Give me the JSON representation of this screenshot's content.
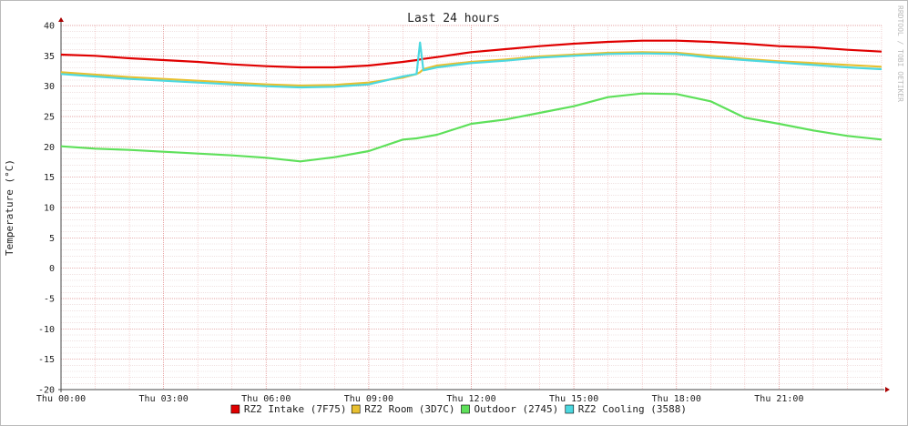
{
  "chart_data": {
    "type": "line",
    "title": "Last 24 hours",
    "ylabel": "Temperature (°C)",
    "watermark": "RRDTOOL / TOBI OETIKER",
    "x": [
      0,
      1,
      2,
      3,
      4,
      5,
      6,
      7,
      8,
      9,
      10,
      10.4,
      10.5,
      10.6,
      11,
      12,
      13,
      14,
      15,
      16,
      17,
      18,
      19,
      20,
      21,
      22,
      23,
      24
    ],
    "series": [
      {
        "name": "RZ2 Intake (7F75)",
        "color": "#e00000",
        "values": [
          35.2,
          35.0,
          34.6,
          34.3,
          34.0,
          33.6,
          33.3,
          33.1,
          33.1,
          33.4,
          34.0,
          34.3,
          34.4,
          34.5,
          34.8,
          35.6,
          36.1,
          36.6,
          37.0,
          37.3,
          37.5,
          37.5,
          37.3,
          37.0,
          36.6,
          36.4,
          36.0,
          35.7
        ]
      },
      {
        "name": "RZ2 Room (3D7C)",
        "color": "#e8c030",
        "values": [
          32.3,
          31.9,
          31.5,
          31.2,
          30.9,
          30.6,
          30.3,
          30.1,
          30.2,
          30.6,
          31.4,
          32.0,
          32.3,
          32.8,
          33.4,
          34.0,
          34.4,
          34.9,
          35.2,
          35.5,
          35.6,
          35.5,
          35.0,
          34.5,
          34.1,
          33.8,
          33.5,
          33.2
        ]
      },
      {
        "name": "Outdoor (2745)",
        "color": "#5ee05a",
        "values": [
          20.1,
          19.7,
          19.5,
          19.2,
          18.9,
          18.6,
          18.2,
          17.6,
          18.3,
          19.3,
          21.2,
          21.4,
          21.5,
          21.6,
          22.0,
          23.8,
          24.5,
          25.6,
          26.7,
          28.2,
          28.8,
          28.7,
          27.5,
          24.8,
          23.8,
          22.7,
          21.8,
          21.2
        ]
      },
      {
        "name": "RZ2 Cooling (3588)",
        "color": "#4cd8e0",
        "values": [
          32.0,
          31.6,
          31.2,
          30.9,
          30.6,
          30.3,
          30.0,
          29.8,
          29.9,
          30.3,
          31.6,
          32.0,
          37.2,
          32.6,
          33.1,
          33.8,
          34.2,
          34.7,
          35.0,
          35.3,
          35.4,
          35.3,
          34.7,
          34.3,
          33.9,
          33.5,
          33.1,
          32.8
        ]
      }
    ],
    "xlim": [
      0,
      24
    ],
    "xticks": [
      {
        "value": 0,
        "label": "Thu 00:00"
      },
      {
        "value": 3,
        "label": "Thu 03:00"
      },
      {
        "value": 6,
        "label": "Thu 06:00"
      },
      {
        "value": 9,
        "label": "Thu 09:00"
      },
      {
        "value": 12,
        "label": "Thu 12:00"
      },
      {
        "value": 15,
        "label": "Thu 15:00"
      },
      {
        "value": 18,
        "label": "Thu 18:00"
      },
      {
        "value": 21,
        "label": "Thu 21:00"
      }
    ],
    "ylim": [
      -20,
      40
    ],
    "yticks": [
      -20,
      -15,
      -10,
      -5,
      0,
      5,
      10,
      15,
      20,
      25,
      30,
      35,
      40
    ],
    "grid": true,
    "minor_grid": {
      "x": 1,
      "y": 1
    },
    "legend": "bottom"
  }
}
